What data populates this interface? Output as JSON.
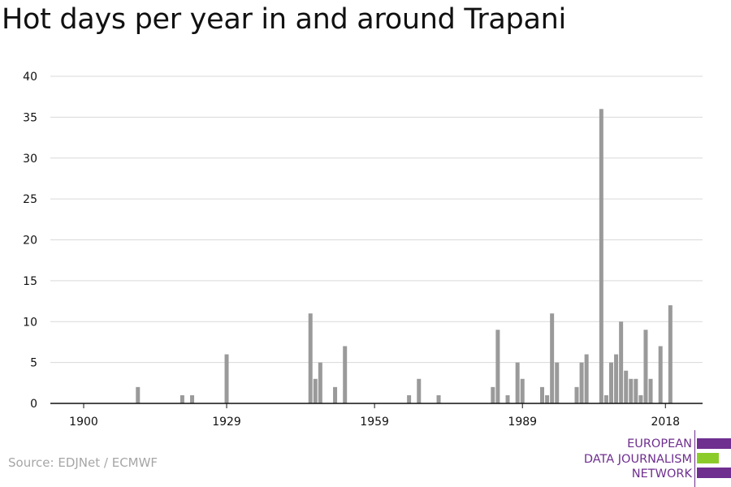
{
  "title": "Hot days per year in and around Trapani",
  "source": "Source: EDJNet / ECMWF",
  "logo": {
    "line1": "EUROPEAN",
    "line2": "DATA JOURNALISM",
    "line3": "NETWORK",
    "colors": {
      "purple": "#6f2f8f",
      "green": "#8ccc2a"
    }
  },
  "colors": {
    "bar": "#9a9a9a",
    "grid": "#d9d9d9",
    "axis": "#111111"
  },
  "chart_data": {
    "type": "bar",
    "title": "Hot days per year in and around Trapani",
    "xlabel": "",
    "ylabel": "",
    "ylim": [
      0,
      40
    ],
    "yticks": [
      0,
      5,
      10,
      15,
      20,
      25,
      30,
      35,
      40
    ],
    "xticks": [
      1900,
      1929,
      1959,
      1989,
      2018
    ],
    "xlim": [
      1894,
      2025
    ],
    "grid": true,
    "bars": [
      {
        "year": 1911,
        "value": 2
      },
      {
        "year": 1920,
        "value": 1
      },
      {
        "year": 1922,
        "value": 1
      },
      {
        "year": 1929,
        "value": 6
      },
      {
        "year": 1946,
        "value": 11
      },
      {
        "year": 1947,
        "value": 3
      },
      {
        "year": 1948,
        "value": 5
      },
      {
        "year": 1951,
        "value": 2
      },
      {
        "year": 1953,
        "value": 7
      },
      {
        "year": 1966,
        "value": 1
      },
      {
        "year": 1968,
        "value": 3
      },
      {
        "year": 1972,
        "value": 1
      },
      {
        "year": 1983,
        "value": 2
      },
      {
        "year": 1984,
        "value": 9
      },
      {
        "year": 1986,
        "value": 1
      },
      {
        "year": 1988,
        "value": 5
      },
      {
        "year": 1989,
        "value": 3
      },
      {
        "year": 1993,
        "value": 2
      },
      {
        "year": 1994,
        "value": 1
      },
      {
        "year": 1995,
        "value": 11
      },
      {
        "year": 1996,
        "value": 5
      },
      {
        "year": 2000,
        "value": 2
      },
      {
        "year": 2001,
        "value": 5
      },
      {
        "year": 2002,
        "value": 6
      },
      {
        "year": 2005,
        "value": 36
      },
      {
        "year": 2006,
        "value": 1
      },
      {
        "year": 2007,
        "value": 5
      },
      {
        "year": 2008,
        "value": 6
      },
      {
        "year": 2009,
        "value": 10
      },
      {
        "year": 2010,
        "value": 4
      },
      {
        "year": 2011,
        "value": 3
      },
      {
        "year": 2012,
        "value": 3
      },
      {
        "year": 2013,
        "value": 1
      },
      {
        "year": 2014,
        "value": 9
      },
      {
        "year": 2015,
        "value": 3
      },
      {
        "year": 2017,
        "value": 7
      },
      {
        "year": 2019,
        "value": 12
      }
    ]
  }
}
